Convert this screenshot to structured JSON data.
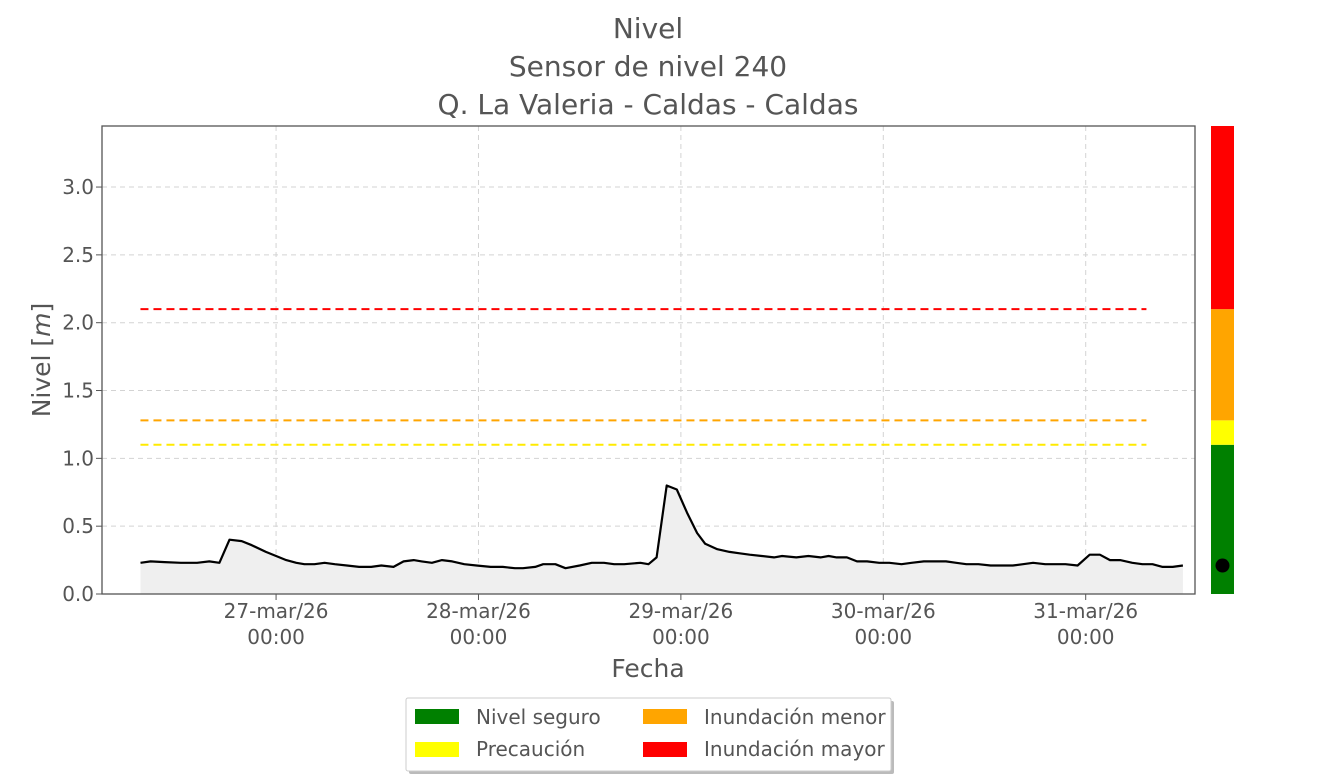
{
  "chart_data": {
    "type": "area",
    "title_lines": [
      "Nivel",
      "Sensor de nivel 240",
      "Q. La Valeria - Caldas - Caldas"
    ],
    "xlabel": "Fecha",
    "ylabel_prefix": "Nivel [",
    "ylabel_unit": "m",
    "ylabel_suffix": "]",
    "ylim": [
      0,
      3.45
    ],
    "yticks": [
      0.0,
      0.5,
      1.0,
      1.5,
      2.0,
      2.5,
      3.0
    ],
    "ytick_labels": [
      "0.0",
      "0.5",
      "1.0",
      "1.5",
      "2.0",
      "2.5",
      "3.0"
    ],
    "xlim_days": [
      -0.86,
      4.54
    ],
    "xticks": [
      {
        "day": 0,
        "date": "27-mar/26",
        "time": "00:00"
      },
      {
        "day": 1,
        "date": "28-mar/26",
        "time": "00:00"
      },
      {
        "day": 2,
        "date": "29-mar/26",
        "time": "00:00"
      },
      {
        "day": 3,
        "date": "30-mar/26",
        "time": "00:00"
      },
      {
        "day": 4,
        "date": "31-mar/26",
        "time": "00:00"
      }
    ],
    "grid": true,
    "series": [
      {
        "x": [
          -0.67,
          -0.62,
          -0.55,
          -0.47,
          -0.39,
          -0.33,
          -0.28,
          -0.23,
          -0.17,
          -0.12,
          -0.05,
          0.0,
          0.05,
          0.1,
          0.14,
          0.19,
          0.24,
          0.29,
          0.35,
          0.41,
          0.47,
          0.52,
          0.58,
          0.63,
          0.68,
          0.72,
          0.77,
          0.82,
          0.87,
          0.93,
          0.99,
          1.06,
          1.12,
          1.18,
          1.22,
          1.28,
          1.32,
          1.38,
          1.43,
          1.5,
          1.56,
          1.62,
          1.67,
          1.72,
          1.8,
          1.84,
          1.88,
          1.93,
          1.98,
          2.03,
          2.08,
          2.12,
          2.18,
          2.24,
          2.29,
          2.34,
          2.4,
          2.46,
          2.5,
          2.57,
          2.63,
          2.69,
          2.73,
          2.77,
          2.82,
          2.87,
          2.92,
          2.98,
          3.03,
          3.09,
          3.14,
          3.2,
          3.26,
          3.31,
          3.36,
          3.41,
          3.47,
          3.53,
          3.58,
          3.64,
          3.69,
          3.74,
          3.8,
          3.85,
          3.9,
          3.96,
          4.02,
          4.07,
          4.12,
          4.17,
          4.23,
          4.28,
          4.33,
          4.38,
          4.43,
          4.48
        ],
        "y": [
          0.23,
          0.24,
          0.235,
          0.23,
          0.23,
          0.24,
          0.23,
          0.4,
          0.39,
          0.36,
          0.31,
          0.28,
          0.25,
          0.23,
          0.22,
          0.22,
          0.23,
          0.22,
          0.21,
          0.2,
          0.2,
          0.21,
          0.2,
          0.24,
          0.25,
          0.24,
          0.23,
          0.25,
          0.24,
          0.22,
          0.21,
          0.2,
          0.2,
          0.19,
          0.19,
          0.2,
          0.22,
          0.22,
          0.19,
          0.21,
          0.23,
          0.23,
          0.22,
          0.22,
          0.23,
          0.22,
          0.27,
          0.8,
          0.77,
          0.6,
          0.45,
          0.37,
          0.33,
          0.31,
          0.3,
          0.29,
          0.28,
          0.27,
          0.28,
          0.27,
          0.28,
          0.27,
          0.28,
          0.27,
          0.27,
          0.24,
          0.24,
          0.23,
          0.23,
          0.22,
          0.23,
          0.24,
          0.24,
          0.24,
          0.23,
          0.22,
          0.22,
          0.21,
          0.21,
          0.21,
          0.22,
          0.23,
          0.22,
          0.22,
          0.22,
          0.21,
          0.29,
          0.29,
          0.25,
          0.25,
          0.23,
          0.22,
          0.22,
          0.2,
          0.2,
          0.21
        ]
      }
    ],
    "thresholds": [
      {
        "value": 2.1,
        "color": "#ff0000"
      },
      {
        "value": 1.28,
        "color": "#ffa500"
      },
      {
        "value": 1.1,
        "color": "#ffea00"
      }
    ],
    "threshold_range_days": [
      -0.67,
      4.3
    ],
    "level_bar": {
      "segments": [
        {
          "from": 0.0,
          "to": 1.1,
          "color": "#008000"
        },
        {
          "from": 1.1,
          "to": 1.28,
          "color": "#ffff00"
        },
        {
          "from": 1.28,
          "to": 2.1,
          "color": "#ffa500"
        },
        {
          "from": 2.1,
          "to": 3.45,
          "color": "#ff0000"
        }
      ],
      "current_value": 0.21
    },
    "legend": {
      "placement": "bottom-center",
      "items": [
        {
          "label": "Nivel seguro",
          "color": "#008000"
        },
        {
          "label": "Inundación menor",
          "color": "#ffa500"
        },
        {
          "label": "Precaución",
          "color": "#ffff00"
        },
        {
          "label": "Inundación mayor",
          "color": "#ff0000"
        }
      ]
    }
  }
}
